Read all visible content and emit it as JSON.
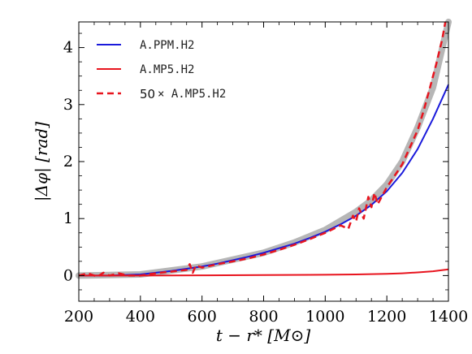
{
  "chart_data": {
    "type": "line",
    "xlabel": "t − r* [M⊙]",
    "ylabel": "|Δφ| [rad]",
    "xlim": [
      200,
      1400
    ],
    "ylim": [
      -0.45,
      4.45
    ],
    "x_ticks": [
      200,
      400,
      600,
      800,
      1000,
      1200,
      1400
    ],
    "x_tick_labels": [
      "200",
      "400",
      "600",
      "800",
      "1000",
      "1200",
      "1400"
    ],
    "y_ticks": [
      0,
      1,
      2,
      3,
      4
    ],
    "y_tick_labels": [
      "0",
      "1",
      "2",
      "3",
      "4"
    ],
    "grid": false,
    "legend_position": "top-left",
    "colors": {
      "blue": "#1a1adb",
      "red": "#e8141e",
      "gray_band": "#a9a9a9"
    },
    "series": [
      {
        "name": "A.PPM.H2",
        "style": "solid",
        "color": "#1a1adb",
        "x": [
          200,
          300,
          400,
          450,
          500,
          550,
          600,
          650,
          700,
          750,
          800,
          850,
          900,
          950,
          1000,
          1050,
          1100,
          1150,
          1200,
          1250,
          1300,
          1350,
          1400
        ],
        "y": [
          0.0,
          0.0,
          0.02,
          0.05,
          0.08,
          0.12,
          0.16,
          0.21,
          0.27,
          0.33,
          0.4,
          0.48,
          0.56,
          0.66,
          0.77,
          0.9,
          1.05,
          1.24,
          1.48,
          1.8,
          2.22,
          2.75,
          3.35
        ]
      },
      {
        "name": "A.MP5.H2",
        "style": "solid",
        "color": "#e8141e",
        "x": [
          200,
          400,
          600,
          800,
          1000,
          1100,
          1200,
          1250,
          1300,
          1350,
          1400
        ],
        "y": [
          0.0,
          0.0,
          0.005,
          0.01,
          0.015,
          0.02,
          0.03,
          0.04,
          0.055,
          0.075,
          0.11
        ]
      },
      {
        "name": "× A.MP5.H2",
        "label_prefix": "50",
        "style": "dashed",
        "color": "#e8141e",
        "x": [
          200,
          230,
          260,
          280,
          300,
          330,
          360,
          400,
          450,
          500,
          550,
          560,
          570,
          580,
          600,
          650,
          700,
          750,
          800,
          850,
          900,
          950,
          1000,
          1050,
          1075,
          1090,
          1100,
          1110,
          1125,
          1140,
          1150,
          1160,
          1170,
          1180,
          1200,
          1250,
          1300,
          1320,
          1340,
          1360,
          1380,
          1390
        ],
        "y": [
          0.0,
          0.04,
          -0.02,
          0.05,
          0.0,
          0.04,
          0.0,
          0.0,
          0.04,
          0.07,
          0.1,
          0.2,
          0.05,
          0.18,
          0.14,
          0.2,
          0.25,
          0.3,
          0.37,
          0.45,
          0.54,
          0.64,
          0.75,
          0.88,
          0.82,
          1.05,
          0.95,
          1.18,
          1.0,
          1.38,
          1.2,
          1.45,
          1.25,
          1.35,
          1.55,
          1.95,
          2.55,
          2.9,
          3.3,
          3.7,
          4.15,
          4.45
        ]
      }
    ],
    "uncertainty_band": {
      "color": "#a9a9a9",
      "x": [
        200,
        400,
        600,
        800,
        900,
        1000,
        1100,
        1150,
        1200,
        1250,
        1300,
        1350,
        1400
      ],
      "y": [
        0.0,
        0.02,
        0.16,
        0.4,
        0.58,
        0.8,
        1.12,
        1.32,
        1.6,
        2.0,
        2.6,
        3.3,
        4.45
      ]
    }
  }
}
